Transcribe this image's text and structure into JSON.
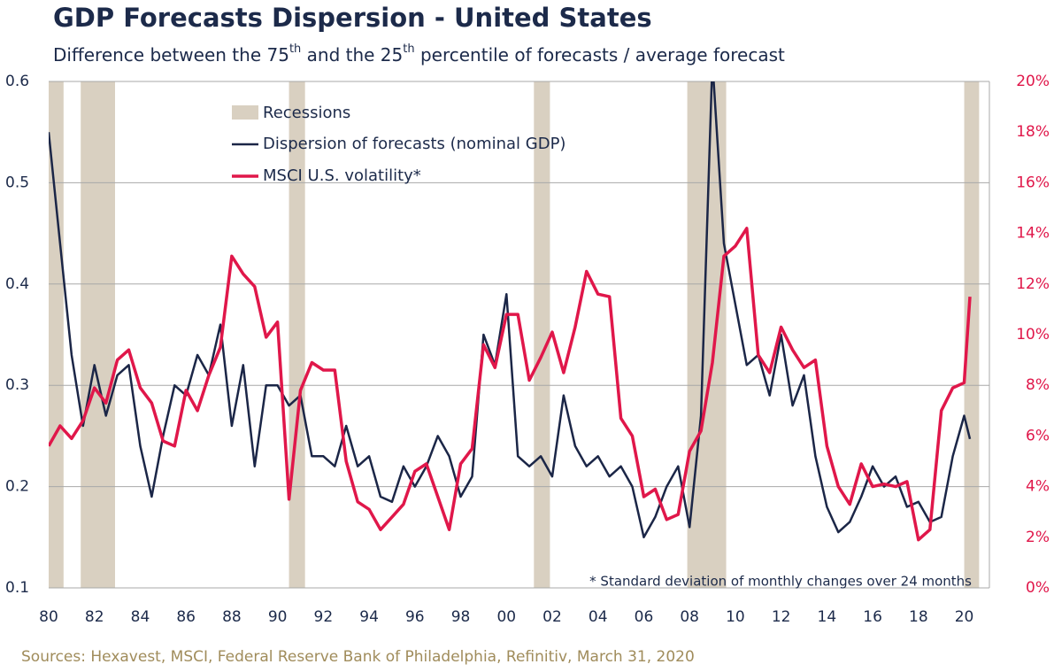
{
  "chart_data": {
    "type": "line",
    "title": "GDP Forecasts Dispersion - United States",
    "subtitle": [
      "Difference between the 75",
      "th",
      " and the 25",
      "th",
      " percentile of forecasts / average forecast"
    ],
    "source": "Sources: Hexavest, MSCI, Federal Reserve Bank of Philadelphia, Refinitiv, March 31, 2020",
    "annotation": "* Standard deviation of monthly changes over 24 months",
    "xlim": [
      1980,
      2021.1
    ],
    "xticks": [
      {
        "value": 1980,
        "label": "80"
      },
      {
        "value": 1982,
        "label": "82"
      },
      {
        "value": 1984,
        "label": "84"
      },
      {
        "value": 1986,
        "label": "86"
      },
      {
        "value": 1988,
        "label": "88"
      },
      {
        "value": 1990,
        "label": "90"
      },
      {
        "value": 1992,
        "label": "92"
      },
      {
        "value": 1994,
        "label": "94"
      },
      {
        "value": 1996,
        "label": "96"
      },
      {
        "value": 1998,
        "label": "98"
      },
      {
        "value": 2000,
        "label": "00"
      },
      {
        "value": 2002,
        "label": "02"
      },
      {
        "value": 2004,
        "label": "04"
      },
      {
        "value": 2006,
        "label": "06"
      },
      {
        "value": 2008,
        "label": "08"
      },
      {
        "value": 2010,
        "label": "10"
      },
      {
        "value": 2012,
        "label": "12"
      },
      {
        "value": 2014,
        "label": "14"
      },
      {
        "value": 2016,
        "label": "16"
      },
      {
        "value": 2018,
        "label": "18"
      },
      {
        "value": 2020,
        "label": "20"
      }
    ],
    "ylim": [
      0.1,
      0.6
    ],
    "yticks": [
      0.1,
      0.2,
      0.3,
      0.4,
      0.5,
      0.6
    ],
    "y2lim": [
      0,
      20
    ],
    "y2ticks": [
      {
        "value": 0,
        "label": "0%"
      },
      {
        "value": 2,
        "label": "2%"
      },
      {
        "value": 4,
        "label": "4%"
      },
      {
        "value": 6,
        "label": "6%"
      },
      {
        "value": 8,
        "label": "8%"
      },
      {
        "value": 10,
        "label": "10%"
      },
      {
        "value": 12,
        "label": "12%"
      },
      {
        "value": 14,
        "label": "14%"
      },
      {
        "value": 16,
        "label": "16%"
      },
      {
        "value": 18,
        "label": "18%"
      },
      {
        "value": 20,
        "label": "20%"
      }
    ],
    "grid": true,
    "recessions": {
      "name": "Recessions",
      "color": "#d9d0c1",
      "periods": [
        [
          1980,
          1980.65
        ],
        [
          1981.4,
          1982.9
        ],
        [
          1990.5,
          1991.2
        ],
        [
          2001.2,
          2001.9
        ],
        [
          2007.9,
          2009.6
        ],
        [
          2020,
          2020.65
        ]
      ]
    },
    "x": [
      1980,
      1980.5,
      1981,
      1981.5,
      1982,
      1982.5,
      1983,
      1983.5,
      1984,
      1984.5,
      1985,
      1985.5,
      1986,
      1986.5,
      1987,
      1987.5,
      1988,
      1988.5,
      1989,
      1989.5,
      1990,
      1990.5,
      1991,
      1991.5,
      1992,
      1992.5,
      1993,
      1993.5,
      1994,
      1994.5,
      1995,
      1995.5,
      1996,
      1996.5,
      1997,
      1997.5,
      1998,
      1998.5,
      1999,
      1999.5,
      2000,
      2000.5,
      2001,
      2001.5,
      2002,
      2002.5,
      2003,
      2003.5,
      2004,
      2004.5,
      2005,
      2005.5,
      2006,
      2006.5,
      2007,
      2007.5,
      2008,
      2008.5,
      2009,
      2009.5,
      2010,
      2010.5,
      2011,
      2011.5,
      2012,
      2012.5,
      2013,
      2013.5,
      2014,
      2014.5,
      2015,
      2015.5,
      2016,
      2016.5,
      2017,
      2017.5,
      2018,
      2018.5,
      2019,
      2019.5,
      2020,
      2020.25
    ],
    "series": [
      {
        "name": "Dispersion of forecasts (nominal GDP)",
        "color": "#1b2647",
        "values": [
          0.55,
          0.44,
          0.33,
          0.26,
          0.32,
          0.27,
          0.31,
          0.32,
          0.24,
          0.19,
          0.25,
          0.3,
          0.29,
          0.33,
          0.31,
          0.36,
          0.26,
          0.32,
          0.22,
          0.3,
          0.3,
          0.28,
          0.29,
          0.23,
          0.23,
          0.22,
          0.26,
          0.22,
          0.23,
          0.19,
          0.185,
          0.22,
          0.2,
          0.22,
          0.25,
          0.23,
          0.19,
          0.21,
          0.35,
          0.32,
          0.39,
          0.23,
          0.22,
          0.23,
          0.21,
          0.29,
          0.24,
          0.22,
          0.23,
          0.21,
          0.22,
          0.2,
          0.15,
          0.17,
          0.2,
          0.22,
          0.16,
          0.27,
          0.62,
          0.44,
          0.38,
          0.32,
          0.33,
          0.29,
          0.35,
          0.28,
          0.31,
          0.23,
          0.18,
          0.155,
          0.165,
          0.19,
          0.22,
          0.2,
          0.21,
          0.18,
          0.185,
          0.165,
          0.17,
          0.23,
          0.27,
          0.247
        ]
      },
      {
        "name": "MSCI U.S. volatility*",
        "color": "#e0174a",
        "axis": "y2",
        "values": [
          5.6,
          6.4,
          5.9,
          6.6,
          7.9,
          7.3,
          9.0,
          9.4,
          7.9,
          7.3,
          5.8,
          5.6,
          7.8,
          7.0,
          8.4,
          9.5,
          13.1,
          12.4,
          11.9,
          9.9,
          10.5,
          3.5,
          7.8,
          8.9,
          8.6,
          8.6,
          5.0,
          3.4,
          3.1,
          2.3,
          2.8,
          3.3,
          4.6,
          4.9,
          3.6,
          2.3,
          4.9,
          5.5,
          9.6,
          8.7,
          10.8,
          10.8,
          8.2,
          9.1,
          10.1,
          8.5,
          10.3,
          12.5,
          11.6,
          11.5,
          6.7,
          6.0,
          3.6,
          3.9,
          2.7,
          2.9,
          5.4,
          6.2,
          8.9,
          13.1,
          13.5,
          14.2,
          9.2,
          8.5,
          10.3,
          9.4,
          8.7,
          9.0,
          5.6,
          4.0,
          3.3,
          4.9,
          4.0,
          4.1,
          4.0,
          4.2,
          1.9,
          2.3,
          7.0,
          7.9,
          8.1,
          11.5
        ]
      }
    ]
  }
}
